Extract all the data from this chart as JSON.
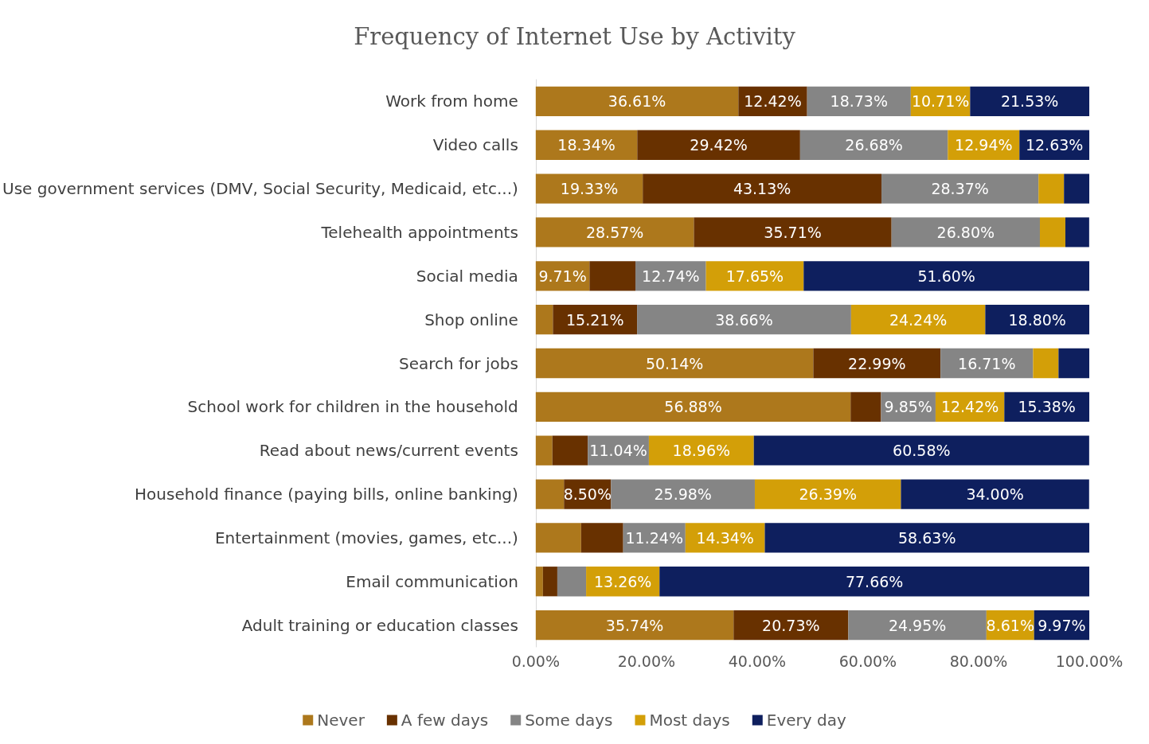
{
  "chart_data": {
    "type": "bar",
    "orientation": "horizontal",
    "stacked": true,
    "title": "Frequency of Internet Use by Activity",
    "categories": [
      "Work from home",
      "Video calls",
      "Use government services (DMV, Social Security, Medicaid, etc...)",
      "Telehealth appointments",
      "Social media",
      "Shop online",
      "Search for jobs",
      "School work for children in the household",
      "Read about news/current events",
      "Household finance (paying bills, online banking)",
      "Entertainment (movies, games, etc...)",
      "Email communication",
      "Adult training or education classes"
    ],
    "series": [
      {
        "name": "Never",
        "color": "#ad781c",
        "values": [
          36.61,
          18.34,
          19.33,
          28.57,
          9.71,
          3.1,
          50.14,
          56.88,
          3.0,
          5.1,
          8.2,
          1.3,
          35.74
        ],
        "value_labels": [
          "36.61%",
          "18.34%",
          "19.33%",
          "28.57%",
          "9.71%",
          null,
          "50.14%",
          "56.88%",
          null,
          null,
          null,
          null,
          "35.74%"
        ]
      },
      {
        "name": "A few days",
        "color": "#683100",
        "values": [
          12.42,
          29.42,
          43.13,
          35.71,
          8.3,
          15.21,
          22.99,
          5.5,
          6.4,
          8.5,
          7.6,
          2.6,
          20.73
        ],
        "value_labels": [
          "12.42%",
          "29.42%",
          "43.13%",
          "35.71%",
          null,
          "15.21%",
          "22.99%",
          null,
          null,
          "8.50%",
          null,
          null,
          "20.73%"
        ]
      },
      {
        "name": "Some days",
        "color": "#858585",
        "values": [
          18.73,
          26.68,
          28.37,
          26.8,
          12.74,
          38.66,
          16.71,
          9.85,
          11.04,
          25.98,
          11.24,
          5.2,
          24.95
        ],
        "value_labels": [
          "18.73%",
          "26.68%",
          "28.37%",
          "26.80%",
          "12.74%",
          "38.66%",
          "16.71%",
          "9.85%",
          "11.04%",
          "25.98%",
          "11.24%",
          null,
          "24.95%"
        ]
      },
      {
        "name": "Most days",
        "color": "#d39f08",
        "values": [
          10.71,
          12.94,
          4.6,
          4.6,
          17.65,
          24.24,
          4.6,
          12.42,
          18.96,
          26.39,
          14.34,
          13.26,
          8.61
        ],
        "value_labels": [
          "10.71%",
          "12.94%",
          null,
          null,
          "17.65%",
          "24.24%",
          null,
          "12.42%",
          "18.96%",
          "26.39%",
          "14.34%",
          "13.26%",
          "8.61%"
        ]
      },
      {
        "name": "Every day",
        "color": "#0e1f5e",
        "values": [
          21.53,
          12.63,
          4.6,
          4.3,
          51.6,
          18.8,
          5.6,
          15.38,
          60.58,
          34.0,
          58.63,
          77.66,
          9.97
        ],
        "value_labels": [
          "21.53%",
          "12.63%",
          null,
          null,
          "51.60%",
          "18.80%",
          null,
          "15.38%",
          "60.58%",
          "34.00%",
          "58.63%",
          "77.66%",
          "9.97%"
        ]
      }
    ],
    "xlim": [
      0,
      100
    ],
    "xticks": [
      {
        "value": 0,
        "label": "0.00%"
      },
      {
        "value": 20,
        "label": "20.00%"
      },
      {
        "value": 40,
        "label": "40.00%"
      },
      {
        "value": 60,
        "label": "60.00%"
      },
      {
        "value": 80,
        "label": "80.00%"
      },
      {
        "value": 100,
        "label": "100.00%"
      }
    ],
    "grid": false,
    "legend": "bottom"
  }
}
